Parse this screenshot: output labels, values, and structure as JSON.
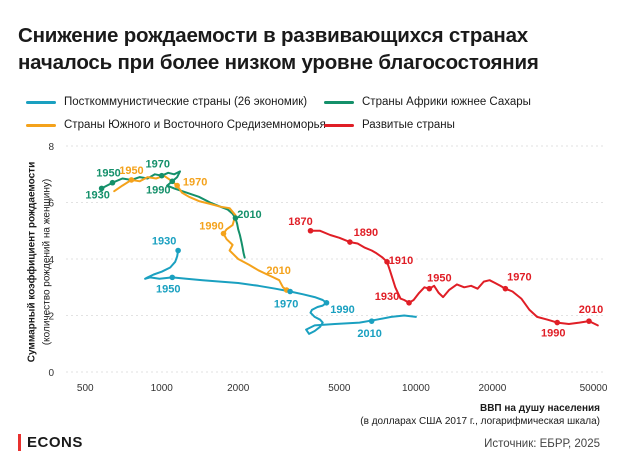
{
  "header": {
    "title": "Снижение рождаемости в развивающихся странах началось при более низком уровне благосостояния"
  },
  "legend": [
    {
      "label": "Посткоммунистические страны (26 экономик)",
      "color": "#1aa0c0"
    },
    {
      "label": "Страны Африки южнее Сахары",
      "color": "#14906a"
    },
    {
      "label": "Страны Южного и Восточного Средиземноморья",
      "color": "#f4a21b"
    },
    {
      "label": "Развитые страны",
      "color": "#e01e26"
    }
  ],
  "axes": {
    "y_main": "Суммарный коэффициент рождаемости",
    "y_sub": "(количество рождений на женщину)",
    "x_main": "ВВП на душу населения",
    "x_sub": "(в долларах США 2017 г., логарифмическая шкала)"
  },
  "footer": {
    "logo": "ECONS",
    "source": "Источник: ЕБРР, 2025"
  },
  "chart_data": {
    "type": "line",
    "x_scale": "log",
    "xlim": [
      420,
      56000
    ],
    "ylim": [
      0,
      8
    ],
    "grid": true,
    "x_ticks": [
      500,
      1000,
      2000,
      5000,
      10000,
      20000,
      50000
    ],
    "y_ticks": [
      0,
      2,
      4,
      6,
      8
    ],
    "series": [
      {
        "name": "Страны Африки южнее Сахары",
        "color": "#14906a",
        "x": [
          580,
          640,
          700,
          760,
          820,
          880,
          940,
          1000,
          1060,
          1120,
          1180,
          1150,
          1100,
          1050,
          1120,
          1250,
          1400,
          1550,
          1700,
          1820,
          1900,
          1950,
          1980,
          2000,
          2030,
          2060,
          2080,
          2100,
          2120
        ],
        "y": [
          6.5,
          6.7,
          6.85,
          6.8,
          6.9,
          6.85,
          7.0,
          6.95,
          7.05,
          7.0,
          7.1,
          6.9,
          6.75,
          6.6,
          6.5,
          6.35,
          6.2,
          6.0,
          5.85,
          5.75,
          5.6,
          5.45,
          5.25,
          5.05,
          4.85,
          4.6,
          4.4,
          4.2,
          4.05
        ],
        "labels": [
          {
            "text": "1950",
            "x": 640,
            "y": 6.7
          },
          {
            "text": "1930",
            "x": 580,
            "y": 6.5
          },
          {
            "text": "1970",
            "x": 1000,
            "y": 6.95
          },
          {
            "text": "1990",
            "x": 1100,
            "y": 6.75
          },
          {
            "text": "2010",
            "x": 1950,
            "y": 5.45
          }
        ]
      },
      {
        "name": "Страны Южного и Восточного Средиземноморья",
        "color": "#f4a21b",
        "x": [
          650,
          700,
          760,
          820,
          880,
          950,
          1020,
          1080,
          1150,
          1200,
          1280,
          1400,
          1550,
          1700,
          1850,
          1950,
          1900,
          1800,
          1750,
          1800,
          1900,
          1850,
          2000,
          2200,
          2400,
          2600,
          2750,
          2900,
          3000,
          3100,
          3150,
          3200
        ],
        "y": [
          6.4,
          6.6,
          6.8,
          6.75,
          6.9,
          6.85,
          6.95,
          6.8,
          6.6,
          6.35,
          6.2,
          6.05,
          5.95,
          5.85,
          5.8,
          5.55,
          5.2,
          5.05,
          4.9,
          4.7,
          4.5,
          4.3,
          4.0,
          3.8,
          3.6,
          3.45,
          3.35,
          3.25,
          3.0,
          2.9,
          2.85,
          2.8
        ],
        "labels": [
          {
            "text": "1950",
            "x": 760,
            "y": 6.8
          },
          {
            "text": "1970",
            "x": 1150,
            "y": 6.6
          },
          {
            "text": "1990",
            "x": 1750,
            "y": 4.9
          },
          {
            "text": "2010",
            "x": 3100,
            "y": 2.9
          }
        ]
      },
      {
        "name": "Посткоммунистические страны (26 экономик)",
        "color": "#1aa0c0",
        "x": [
          1160,
          1150,
          1130,
          1080,
          1000,
          930,
          880,
          860,
          900,
          980,
          1100,
          1250,
          1450,
          1700,
          2000,
          2400,
          2800,
          3200,
          3600,
          4000,
          4300,
          4450,
          4300,
          4100,
          3900,
          3850,
          4000,
          4200,
          4300,
          4200,
          4000,
          3800,
          3700,
          4000,
          4800,
          6000,
          7000,
          8000,
          9000,
          10000
        ],
        "y": [
          4.3,
          4.1,
          3.9,
          3.7,
          3.55,
          3.45,
          3.35,
          3.3,
          3.35,
          3.3,
          3.35,
          3.3,
          3.25,
          3.2,
          3.15,
          3.05,
          2.95,
          2.85,
          2.75,
          2.65,
          2.55,
          2.45,
          2.35,
          2.3,
          2.2,
          2.1,
          1.95,
          1.85,
          1.75,
          1.6,
          1.45,
          1.35,
          1.5,
          1.65,
          1.7,
          1.75,
          1.85,
          1.95,
          2.0,
          1.95
        ],
        "labels": [
          {
            "text": "1930",
            "x": 1160,
            "y": 4.3
          },
          {
            "text": "1950",
            "x": 1100,
            "y": 3.35
          },
          {
            "text": "1970",
            "x": 3200,
            "y": 2.85
          },
          {
            "text": "1990",
            "x": 4450,
            "y": 2.45
          },
          {
            "text": "2010",
            "x": 6700,
            "y": 1.8
          }
        ]
      },
      {
        "name": "Развитые страны",
        "color": "#e01e26",
        "x": [
          3850,
          4200,
          4600,
          5000,
          5500,
          5900,
          6300,
          6700,
          7000,
          7400,
          7700,
          7900,
          8100,
          8300,
          8500,
          8700,
          9000,
          9400,
          9800,
          10300,
          10800,
          11300,
          11800,
          12300,
          12800,
          13500,
          14500,
          15500,
          16500,
          17500,
          18500,
          19500,
          20500,
          21500,
          22500,
          24000,
          26000,
          28000,
          30000,
          33000,
          36000,
          40000,
          44000,
          48000,
          52000
        ],
        "y": [
          5.0,
          5.0,
          4.85,
          4.75,
          4.6,
          4.55,
          4.4,
          4.3,
          4.2,
          4.05,
          3.9,
          3.6,
          3.3,
          3.0,
          2.8,
          2.6,
          2.55,
          2.45,
          2.55,
          2.8,
          3.0,
          2.95,
          3.05,
          2.8,
          2.65,
          2.9,
          3.1,
          3.0,
          3.05,
          2.95,
          3.2,
          3.25,
          3.15,
          3.05,
          2.95,
          2.85,
          2.6,
          2.2,
          1.95,
          1.85,
          1.75,
          1.7,
          1.75,
          1.8,
          1.65
        ],
        "labels": [
          {
            "text": "1870",
            "x": 3850,
            "y": 5.0
          },
          {
            "text": "1890",
            "x": 5500,
            "y": 4.6
          },
          {
            "text": "1910",
            "x": 7700,
            "y": 3.9
          },
          {
            "text": "1930",
            "x": 9400,
            "y": 2.45
          },
          {
            "text": "1950",
            "x": 11300,
            "y": 2.95
          },
          {
            "text": "1970",
            "x": 22500,
            "y": 2.95
          },
          {
            "text": "1990",
            "x": 36000,
            "y": 1.75
          },
          {
            "text": "2010",
            "x": 48000,
            "y": 1.8
          }
        ]
      }
    ]
  }
}
